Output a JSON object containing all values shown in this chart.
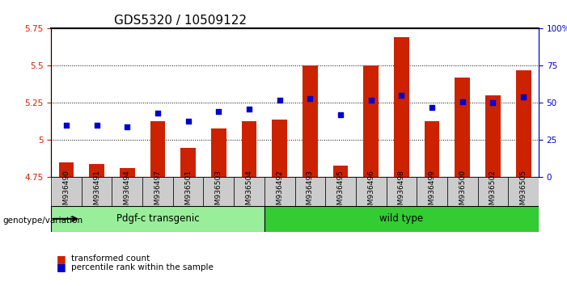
{
  "title": "GDS5320 / 10509122",
  "samples": [
    "GSM936490",
    "GSM936491",
    "GSM936494",
    "GSM936497",
    "GSM936501",
    "GSM936503",
    "GSM936504",
    "GSM936492",
    "GSM936493",
    "GSM936495",
    "GSM936496",
    "GSM936498",
    "GSM936499",
    "GSM936500",
    "GSM936502",
    "GSM936505"
  ],
  "bar_values": [
    4.85,
    4.84,
    4.81,
    5.13,
    4.95,
    5.08,
    5.13,
    5.14,
    5.5,
    4.83,
    5.5,
    5.69,
    5.13,
    5.42,
    5.3,
    5.47
  ],
  "dot_values": [
    35,
    35,
    34,
    43,
    38,
    44,
    46,
    52,
    53,
    42,
    52,
    55,
    47,
    51,
    50,
    54
  ],
  "ylim_left": [
    4.75,
    5.75
  ],
  "ylim_right": [
    0,
    100
  ],
  "yticks_left": [
    4.75,
    5.0,
    5.25,
    5.5,
    5.75
  ],
  "yticks_right": [
    0,
    25,
    50,
    75,
    100
  ],
  "ytick_labels_right": [
    "0",
    "25",
    "50",
    "75",
    "100%"
  ],
  "bar_color": "#cc2200",
  "dot_color": "#0000cc",
  "grid_color": "#000000",
  "bar_bottom": 4.75,
  "transgenic_count": 7,
  "wild_count": 9,
  "transgenic_label": "Pdgf-c transgenic",
  "wild_label": "wild type",
  "genotype_label": "genotype/variation",
  "legend_bar_label": "transformed count",
  "legend_dot_label": "percentile rank within the sample",
  "background_color": "#ffffff",
  "plot_bg": "#ffffff",
  "tick_bg": "#cccccc",
  "group_transgenic_bg": "#99ee99",
  "group_wild_bg": "#33cc33",
  "title_fontsize": 11,
  "axis_fontsize": 8,
  "tick_fontsize": 7.5
}
